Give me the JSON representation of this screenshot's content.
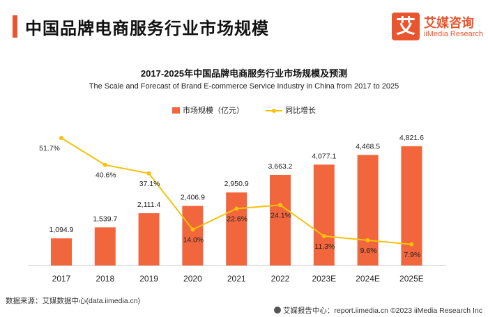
{
  "header": {
    "title": "中国品牌电商服务行业市场规模",
    "logo_mark": "艾",
    "logo_cn": "艾媒咨询",
    "logo_en": "iiMedia Research"
  },
  "chart_data": {
    "type": "bar",
    "title": "2017-2025年中国品牌电商服务行业市场规模及预测",
    "subtitle": "The Scale and Forecast of Brand E-commerce Service Industry in China from 2017 to 2025",
    "categories": [
      "2017",
      "2018",
      "2019",
      "2020",
      "2021",
      "2022",
      "2023E",
      "2024E",
      "2025E"
    ],
    "series": [
      {
        "name": "市场规模（亿元）",
        "type": "bar",
        "color": "#f2663d",
        "values": [
          1094.9,
          1539.7,
          2111.4,
          2406.9,
          2950.9,
          3663.2,
          4077.1,
          4468.5,
          4821.6
        ],
        "labels": [
          "1,094.9",
          "1,539.7",
          "2,111.4",
          "2,406.9",
          "2,950.9",
          "3,663.2",
          "4,077.1",
          "4,468.5",
          "4,821.6"
        ]
      },
      {
        "name": "同比增长",
        "type": "line",
        "color": "#f5c20b",
        "values": [
          51.7,
          40.6,
          37.1,
          14.0,
          22.6,
          24.1,
          11.3,
          9.6,
          7.9
        ],
        "labels": [
          "51.7%",
          "40.6%",
          "37.1%",
          "14.0%",
          "22.6%",
          "24.1%",
          "11.3%",
          "9.6%",
          "7.9%"
        ]
      }
    ],
    "ylim_bar": [
      0,
      5000
    ],
    "ylim_line": [
      0,
      60
    ],
    "grid": false,
    "legend": "top-center"
  },
  "footer": {
    "source": "数据来源：艾媒数据中心(data.iimedia.cn)",
    "report_center": "艾媒报告中心：report.iimedia.cn   ©2023  iiMedia Research  Inc"
  }
}
